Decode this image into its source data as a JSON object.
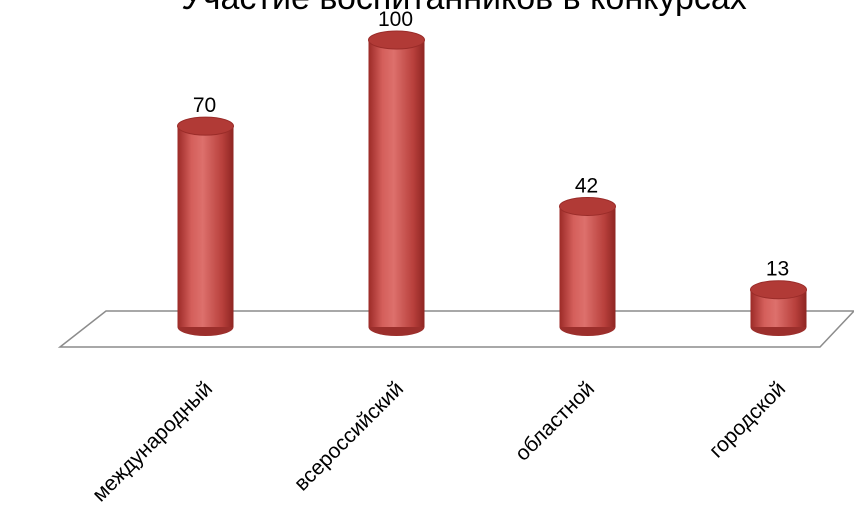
{
  "chart_data": {
    "type": "bar",
    "title": "Участие воспитанников в конкурсах",
    "categories": [
      "международный",
      "всероссийский",
      "областной",
      "городской"
    ],
    "values": [
      70,
      100,
      42,
      13
    ],
    "data_labels": [
      "70",
      "100",
      "42",
      "13"
    ],
    "ylim": [
      0,
      100
    ],
    "grid": false,
    "legend": "none",
    "style": "3d-cylinder",
    "bar_color": "#c0504d",
    "floor_color": "#ffffff",
    "floor_stroke": "#8c8c8c"
  }
}
